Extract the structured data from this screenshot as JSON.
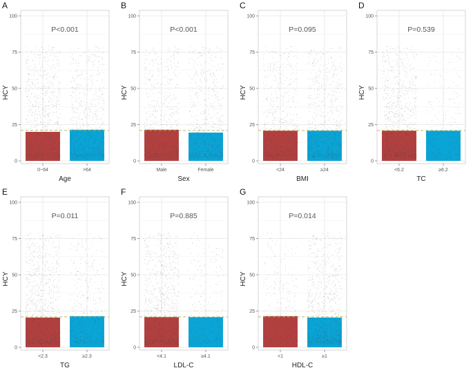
{
  "colors": {
    "red": "#b2403f",
    "blue": "#0aa4d6",
    "ref_line": "#b0b050",
    "grid": "#e6e6e6",
    "border": "#bbbbbb",
    "dots": "#444444"
  },
  "chart_data": [
    {
      "type": "bar",
      "panel": "A",
      "title": "P<0.001",
      "xlabel": "Age",
      "ylabel": "HCY",
      "ylim": [
        0,
        100
      ],
      "yticks": [
        "0",
        "25",
        "50",
        "75",
        "100"
      ],
      "reference_line": 21,
      "categories": [
        "0~64",
        ">64"
      ],
      "values": [
        20,
        21.5
      ],
      "point_density": [
        1.0,
        0.75
      ]
    },
    {
      "type": "bar",
      "panel": "B",
      "title": "P<0.001",
      "xlabel": "Sex",
      "ylabel": "HCY",
      "ylim": [
        0,
        100
      ],
      "yticks": [
        "0",
        "25",
        "50",
        "75",
        "100"
      ],
      "reference_line": 21,
      "categories": [
        "Male",
        "Female"
      ],
      "values": [
        21.5,
        19.5
      ],
      "point_density": [
        0.8,
        0.8
      ]
    },
    {
      "type": "bar",
      "panel": "C",
      "title": "P=0.095",
      "xlabel": "BMI",
      "ylabel": "HCY",
      "ylim": [
        0,
        100
      ],
      "yticks": [
        "0",
        "25",
        "50",
        "75",
        "100"
      ],
      "reference_line": 21,
      "categories": [
        "<24",
        "≥24"
      ],
      "values": [
        20.8,
        20.8
      ],
      "point_density": [
        0.8,
        0.8
      ]
    },
    {
      "type": "bar",
      "panel": "D",
      "title": "P=0.539",
      "xlabel": "TC",
      "ylabel": "HCY",
      "ylim": [
        0,
        100
      ],
      "yticks": [
        "0",
        "25",
        "50",
        "75",
        "100"
      ],
      "reference_line": 21,
      "categories": [
        "<6.2",
        "≥6.2"
      ],
      "values": [
        20.8,
        20.8
      ],
      "point_density": [
        1.1,
        0.25
      ]
    },
    {
      "type": "bar",
      "panel": "E",
      "title": "P=0.011",
      "xlabel": "TG",
      "ylabel": "HCY",
      "ylim": [
        0,
        100
      ],
      "yticks": [
        "0",
        "25",
        "50",
        "75",
        "100"
      ],
      "reference_line": 21,
      "categories": [
        "<2.3",
        "≥2.3"
      ],
      "values": [
        20.5,
        21.5
      ],
      "point_density": [
        1.1,
        0.45
      ]
    },
    {
      "type": "bar",
      "panel": "F",
      "title": "P=0.885",
      "xlabel": "LDL-C",
      "ylabel": "HCY",
      "ylim": [
        0,
        100
      ],
      "yticks": [
        "0",
        "25",
        "50",
        "75",
        "100"
      ],
      "reference_line": 21,
      "categories": [
        "<4.1",
        "≥4.1"
      ],
      "values": [
        20.8,
        20.8
      ],
      "point_density": [
        1.15,
        0.3
      ]
    },
    {
      "type": "bar",
      "panel": "G",
      "title": "P=0.014",
      "xlabel": "HDL-C",
      "ylabel": "HCY",
      "ylim": [
        0,
        100
      ],
      "yticks": [
        "0",
        "25",
        "50",
        "75",
        "100"
      ],
      "reference_line": 21,
      "categories": [
        "<1",
        "≥1"
      ],
      "values": [
        21.5,
        20.5
      ],
      "point_density": [
        0.35,
        1.0
      ]
    }
  ]
}
